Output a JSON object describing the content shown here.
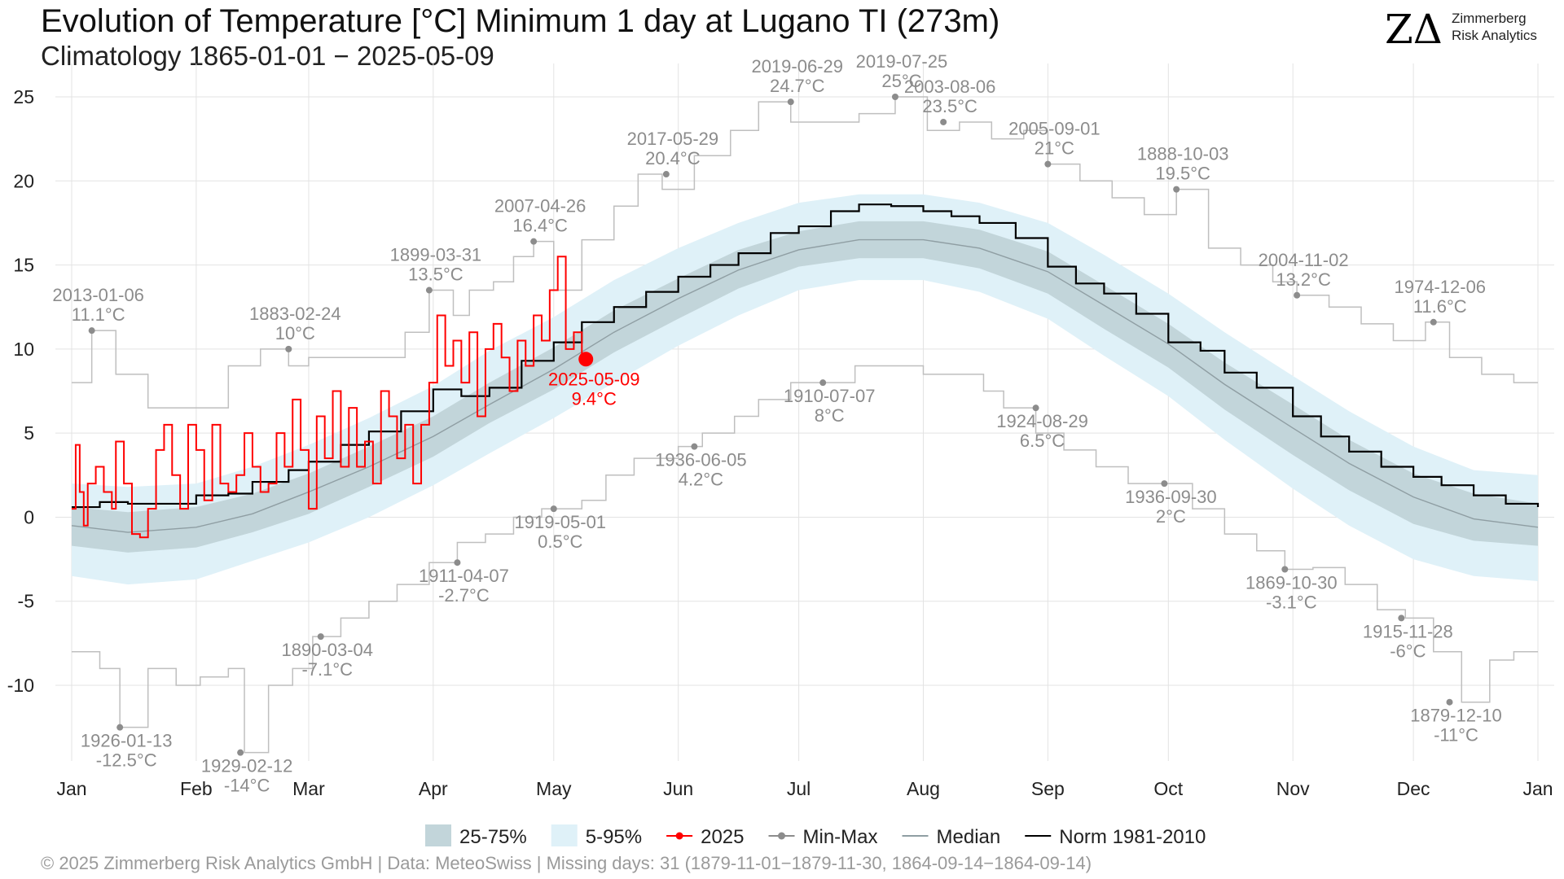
{
  "title": "Evolution of Temperature [°C] Minimum 1 day at Lugano  TI (273m)",
  "subtitle": "Climatology 1865-01-01 − 2025-05-09",
  "logo": {
    "mark": "ZΔ",
    "line1": "Zimmerberg",
    "line2": "Risk Analytics"
  },
  "footer": "©  2025 Zimmerberg Risk Analytics GmbH | Data: MeteoSwiss | Missing days: 31 (1879-11-01−1879-11-30, 1864-09-14−1864-09-14)",
  "colors": {
    "band_25_75": "#c2d5da",
    "band_5_95": "#dff1f8",
    "current_2025": "#ff0000",
    "minmax": "#bfbfbf",
    "minmax_points": "#8c8c8c",
    "median": "#8f9ea3",
    "norm": "#000000",
    "grid": "#e3e3e3"
  },
  "chart_data": {
    "type": "line",
    "x_axis": {
      "unit": "day of year",
      "ticks": [
        {
          "label": "Jan",
          "doy": 1
        },
        {
          "label": "Feb",
          "doy": 32
        },
        {
          "label": "Mar",
          "doy": 60
        },
        {
          "label": "Apr",
          "doy": 91
        },
        {
          "label": "May",
          "doy": 121
        },
        {
          "label": "Jun",
          "doy": 152
        },
        {
          "label": "Jul",
          "doy": 182
        },
        {
          "label": "Aug",
          "doy": 213
        },
        {
          "label": "Sep",
          "doy": 244
        },
        {
          "label": "Oct",
          "doy": 274
        },
        {
          "label": "Nov",
          "doy": 305
        },
        {
          "label": "Dec",
          "doy": 335
        },
        {
          "label": "Jan",
          "doy": 366
        }
      ],
      "range": [
        1,
        366
      ]
    },
    "y_axis": {
      "ticks": [
        25,
        20,
        15,
        10,
        5,
        0,
        -5,
        -10
      ],
      "range": [
        -14.5,
        26.5
      ]
    },
    "grid": true,
    "legend_position": "bottom",
    "legend": [
      {
        "label": "25-75%",
        "kind": "box",
        "color_key": "band_25_75"
      },
      {
        "label": "5-95%",
        "kind": "box",
        "color_key": "band_5_95"
      },
      {
        "label": "2025",
        "kind": "line-point",
        "color_key": "current_2025"
      },
      {
        "label": "Min-Max",
        "kind": "line-point",
        "color_key": "minmax_points"
      },
      {
        "label": "Median",
        "kind": "line",
        "color_key": "median"
      },
      {
        "label": "Norm 1981-2010",
        "kind": "line",
        "color_key": "norm"
      }
    ],
    "series": [
      {
        "name": "Median",
        "doy": [
          1,
          15,
          32,
          46,
          60,
          75,
          91,
          105,
          121,
          136,
          152,
          167,
          182,
          197,
          213,
          227,
          244,
          258,
          274,
          288,
          305,
          319,
          335,
          350,
          366
        ],
        "values": [
          -0.5,
          -0.9,
          -0.6,
          0.2,
          1.5,
          3.0,
          4.8,
          6.7,
          8.8,
          11.0,
          13.0,
          14.7,
          15.9,
          16.5,
          16.5,
          16.0,
          14.6,
          12.6,
          10.3,
          7.9,
          5.3,
          3.2,
          1.2,
          -0.1,
          -0.6
        ]
      },
      {
        "name": "25-75%",
        "doy": [
          1,
          15,
          32,
          46,
          60,
          75,
          91,
          105,
          121,
          136,
          152,
          167,
          182,
          197,
          213,
          227,
          244,
          258,
          274,
          288,
          305,
          319,
          335,
          350,
          366
        ],
        "lower": [
          -1.7,
          -2.1,
          -1.8,
          -0.9,
          0.2,
          1.8,
          3.6,
          5.6,
          7.6,
          9.8,
          11.8,
          13.6,
          14.9,
          15.4,
          15.4,
          14.8,
          13.3,
          11.2,
          8.9,
          6.4,
          3.7,
          1.6,
          -0.4,
          -1.4,
          -1.7
        ],
        "upper": [
          0.6,
          0.3,
          0.6,
          1.4,
          2.6,
          4.2,
          6.0,
          8.0,
          10.1,
          12.3,
          14.2,
          15.9,
          17.0,
          17.6,
          17.6,
          17.1,
          15.8,
          13.8,
          11.5,
          9.2,
          6.7,
          4.6,
          2.6,
          1.4,
          0.8
        ]
      },
      {
        "name": "5-95%",
        "doy": [
          1,
          15,
          32,
          46,
          60,
          75,
          91,
          105,
          121,
          136,
          152,
          167,
          182,
          197,
          213,
          227,
          244,
          258,
          274,
          288,
          305,
          319,
          335,
          350,
          366
        ],
        "lower": [
          -3.5,
          -4.0,
          -3.7,
          -2.6,
          -1.5,
          0.0,
          1.9,
          3.8,
          5.9,
          8.0,
          10.2,
          12.0,
          13.5,
          14.1,
          14.1,
          13.4,
          11.8,
          9.6,
          7.2,
          4.6,
          1.7,
          -0.5,
          -2.5,
          -3.5,
          -3.8
        ],
        "upper": [
          2.0,
          1.8,
          2.0,
          3.0,
          4.3,
          5.9,
          7.8,
          9.9,
          11.9,
          14.1,
          16.0,
          17.5,
          18.7,
          19.2,
          19.2,
          18.7,
          17.5,
          15.6,
          13.3,
          11.0,
          8.4,
          6.3,
          4.2,
          2.8,
          2.5
        ]
      },
      {
        "name": "Norm 1981-2010",
        "doy": [
          1,
          8,
          15,
          25,
          32,
          40,
          46,
          55,
          60,
          68,
          75,
          83,
          91,
          98,
          105,
          113,
          121,
          128,
          136,
          144,
          152,
          160,
          167,
          175,
          182,
          190,
          197,
          205,
          213,
          220,
          227,
          236,
          244,
          251,
          258,
          266,
          274,
          282,
          288,
          296,
          305,
          312,
          319,
          327,
          335,
          342,
          350,
          358,
          366
        ],
        "values": [
          0.6,
          0.9,
          0.8,
          0.8,
          1.3,
          1.4,
          2.1,
          2.8,
          3.3,
          4.3,
          5.1,
          6.3,
          7.6,
          7.2,
          7.7,
          9.3,
          10.4,
          11.6,
          12.5,
          13.4,
          14.3,
          15.0,
          15.7,
          16.9,
          17.3,
          18.2,
          18.6,
          18.5,
          18.2,
          17.9,
          17.5,
          16.6,
          14.9,
          13.9,
          13.3,
          12.1,
          10.4,
          9.9,
          8.6,
          7.7,
          6.0,
          4.8,
          3.9,
          3.0,
          2.4,
          1.9,
          1.3,
          0.8,
          0.6
        ]
      },
      {
        "name": "Record max",
        "doy": [
          1,
          6,
          12,
          20,
          32,
          40,
          48,
          55,
          60,
          68,
          76,
          84,
          90,
          96,
          100,
          106,
          111,
          116,
          121,
          128,
          136,
          142,
          148,
          156,
          165,
          172,
          180,
          188,
          197,
          206,
          214,
          222,
          230,
          238,
          244,
          252,
          260,
          268,
          276,
          284,
          292,
          300,
          306,
          314,
          322,
          330,
          338,
          344,
          352,
          360,
          366
        ],
        "values": [
          8.0,
          11.1,
          8.5,
          6.5,
          6.5,
          9.0,
          10.0,
          9.0,
          9.5,
          9.5,
          9.5,
          11.0,
          13.5,
          12.0,
          13.5,
          14.0,
          15.5,
          16.4,
          13.5,
          16.5,
          18.5,
          20.4,
          19.5,
          21.5,
          23.0,
          24.7,
          23.5,
          23.5,
          24.0,
          25.0,
          23.0,
          23.5,
          22.5,
          23.0,
          21.0,
          20.0,
          19.0,
          18.0,
          19.5,
          16.0,
          15.0,
          14.0,
          13.2,
          12.5,
          11.5,
          10.5,
          11.6,
          9.5,
          8.5,
          8.0,
          8.0
        ]
      },
      {
        "name": "Record min",
        "doy": [
          1,
          8,
          13,
          20,
          27,
          33,
          40,
          44,
          50,
          56,
          61,
          68,
          75,
          82,
          90,
          97,
          104,
          111,
          118,
          121,
          128,
          134,
          141,
          152,
          158,
          166,
          172,
          180,
          188,
          196,
          205,
          213,
          221,
          228,
          233,
          241,
          248,
          256,
          264,
          273,
          280,
          288,
          296,
          303,
          310,
          318,
          326,
          333,
          340,
          347,
          354,
          360,
          366
        ],
        "values": [
          -8.0,
          -9.0,
          -12.5,
          -9.0,
          -10.0,
          -9.5,
          -9.0,
          -14.0,
          -10.0,
          -9.0,
          -7.1,
          -6.0,
          -5.0,
          -4.0,
          -2.7,
          -1.5,
          -1.0,
          0.0,
          0.5,
          0.5,
          1.0,
          2.5,
          3.5,
          4.2,
          5.0,
          6.0,
          7.0,
          8.0,
          8.0,
          9.0,
          9.0,
          8.5,
          8.5,
          7.5,
          6.5,
          5.0,
          4.0,
          3.0,
          2.0,
          2.0,
          0.5,
          -1.0,
          -2.0,
          -3.1,
          -3.0,
          -4.0,
          -5.5,
          -6.0,
          -8.0,
          -11.0,
          -8.5,
          -8.0,
          -8.0
        ]
      },
      {
        "name": "2025",
        "doy": [
          1,
          2,
          3,
          4,
          5,
          7,
          9,
          11,
          12,
          14,
          16,
          18,
          20,
          22,
          24,
          26,
          28,
          30,
          32,
          34,
          36,
          38,
          40,
          42,
          44,
          46,
          48,
          50,
          52,
          54,
          56,
          58,
          60,
          62,
          64,
          66,
          68,
          70,
          72,
          74,
          76,
          78,
          80,
          82,
          84,
          86,
          88,
          90,
          92,
          94,
          96,
          98,
          100,
          102,
          104,
          106,
          108,
          110,
          112,
          114,
          116,
          118,
          120,
          122,
          124,
          126,
          128,
          129
        ],
        "values": [
          0.5,
          4.3,
          1.5,
          -0.5,
          2.0,
          3.0,
          1.5,
          0.5,
          4.5,
          2.0,
          -1.0,
          -1.2,
          0.5,
          4.0,
          5.5,
          2.5,
          0.5,
          5.5,
          4.0,
          1.0,
          5.5,
          2.0,
          1.5,
          2.5,
          5.0,
          3.0,
          1.5,
          2.0,
          5.0,
          3.0,
          7.0,
          4.0,
          0.5,
          6.0,
          3.5,
          7.5,
          3.0,
          6.5,
          3.0,
          4.5,
          2.0,
          7.5,
          6.0,
          3.5,
          5.5,
          2.0,
          5.5,
          8.0,
          12.0,
          9.0,
          10.5,
          8.0,
          11.0,
          6.0,
          10.0,
          11.5,
          9.5,
          7.5,
          10.5,
          9.0,
          12.0,
          10.5,
          13.5,
          15.5,
          10.0,
          11.0,
          9.5,
          9.4
        ]
      }
    ],
    "annotations": [
      {
        "doy": 6,
        "value": 11.1,
        "date": "2013-01-06",
        "label": "11.1°C",
        "kind": "max"
      },
      {
        "doy": 55,
        "value": 10,
        "date": "1883-02-24",
        "label": "10°C",
        "kind": "max"
      },
      {
        "doy": 90,
        "value": 13.5,
        "date": "1899-03-31",
        "label": "13.5°C",
        "kind": "max"
      },
      {
        "doy": 116,
        "value": 16.4,
        "date": "2007-04-26",
        "label": "16.4°C",
        "kind": "max"
      },
      {
        "doy": 149,
        "value": 20.4,
        "date": "2017-05-29",
        "label": "20.4°C",
        "kind": "max"
      },
      {
        "doy": 180,
        "value": 24.7,
        "date": "2019-06-29",
        "label": "24.7°C",
        "kind": "max"
      },
      {
        "doy": 206,
        "value": 25,
        "date": "2019-07-25",
        "label": "25°C",
        "kind": "max"
      },
      {
        "doy": 218,
        "value": 23.5,
        "date": "2003-08-06",
        "label": "23.5°C",
        "kind": "max"
      },
      {
        "doy": 244,
        "value": 21,
        "date": "2005-09-01",
        "label": "21°C",
        "kind": "max"
      },
      {
        "doy": 276,
        "value": 19.5,
        "date": "1888-10-03",
        "label": "19.5°C",
        "kind": "max"
      },
      {
        "doy": 306,
        "value": 13.2,
        "date": "2004-11-02",
        "label": "13.2°C",
        "kind": "max"
      },
      {
        "doy": 340,
        "value": 11.6,
        "date": "1974-12-06",
        "label": "11.6°C",
        "kind": "max"
      },
      {
        "doy": 13,
        "value": -12.5,
        "date": "1926-01-13",
        "label": "-12.5°C",
        "kind": "min"
      },
      {
        "doy": 43,
        "value": -14,
        "date": "1929-02-12",
        "label": "-14°C",
        "kind": "min"
      },
      {
        "doy": 63,
        "value": -7.1,
        "date": "1890-03-04",
        "label": "-7.1°C",
        "kind": "min"
      },
      {
        "doy": 97,
        "value": -2.7,
        "date": "1911-04-07",
        "label": "-2.7°C",
        "kind": "min"
      },
      {
        "doy": 121,
        "value": 0.5,
        "date": "1919-05-01",
        "label": "0.5°C",
        "kind": "min"
      },
      {
        "doy": 156,
        "value": 4.2,
        "date": "1936-06-05",
        "label": "4.2°C",
        "kind": "min"
      },
      {
        "doy": 188,
        "value": 8,
        "date": "1910-07-07",
        "label": "8°C",
        "kind": "min"
      },
      {
        "doy": 241,
        "value": 6.5,
        "date": "1924-08-29",
        "label": "6.5°C",
        "kind": "min"
      },
      {
        "doy": 273,
        "value": 2,
        "date": "1936-09-30",
        "label": "2°C",
        "kind": "min"
      },
      {
        "doy": 303,
        "value": -3.1,
        "date": "1869-10-30",
        "label": "-3.1°C",
        "kind": "min"
      },
      {
        "doy": 332,
        "value": -6,
        "date": "1915-11-28",
        "label": "-6°C",
        "kind": "min"
      },
      {
        "doy": 344,
        "value": -11,
        "date": "1879-12-10",
        "label": "-11°C",
        "kind": "min"
      },
      {
        "doy": 129,
        "value": 9.4,
        "date": "2025-05-09",
        "label": "9.4°C",
        "kind": "current"
      }
    ]
  }
}
